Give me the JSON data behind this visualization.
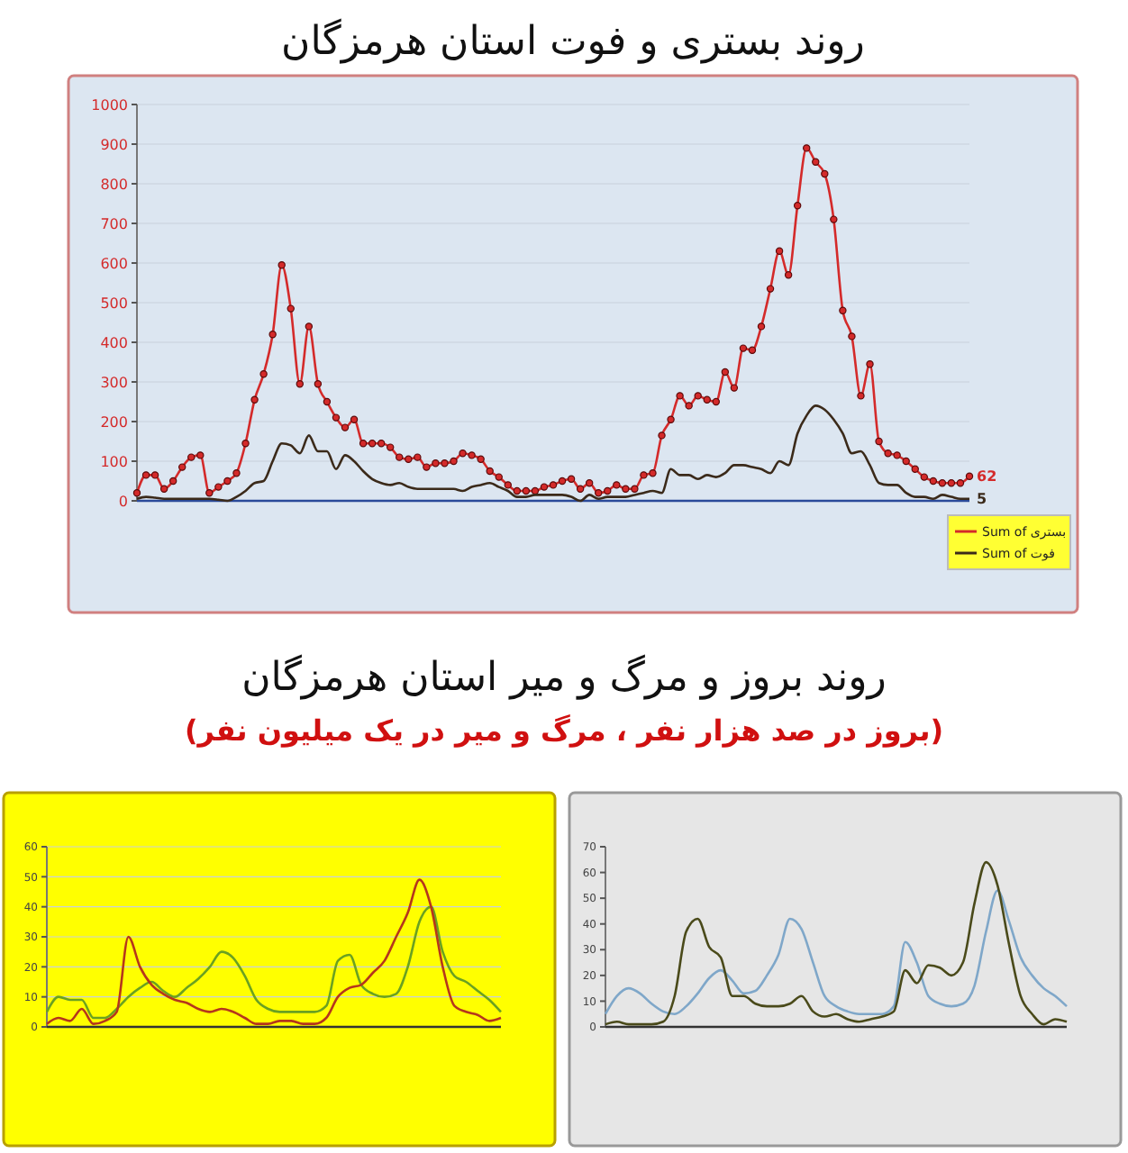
{
  "chart_data": [
    {
      "type": "line",
      "title": "روند بستری و فوت استان هرمزگان",
      "categories": [
        null,
        null,
        null,
        null,
        null,
        null,
        null,
        null,
        null,
        null,
        null,
        null,
        null,
        null,
        null,
        null,
        null,
        null,
        null,
        null,
        null,
        null,
        null,
        null,
        null,
        null,
        null,
        null,
        null,
        null,
        null,
        null,
        null,
        null,
        null,
        null,
        null,
        null,
        null,
        null,
        null,
        null,
        null,
        null,
        null,
        null,
        null,
        null,
        null,
        null,
        null,
        null,
        null,
        null,
        null,
        null,
        null,
        null,
        null,
        null,
        null,
        null,
        null,
        null,
        null,
        null,
        null,
        null,
        null,
        null,
        null,
        null,
        null,
        null,
        null,
        null,
        null,
        null,
        null,
        null,
        null,
        null,
        null,
        null,
        null,
        null,
        null,
        null,
        null,
        null,
        null,
        null,
        null
      ],
      "series": [
        {
          "name": "Sum of بستری",
          "color": "#d42a2a",
          "marker": "circle",
          "values": [
            20,
            65,
            65,
            30,
            50,
            85,
            110,
            115,
            20,
            35,
            50,
            70,
            145,
            255,
            320,
            420,
            595,
            485,
            295,
            440,
            295,
            250,
            210,
            185,
            205,
            145,
            145,
            145,
            135,
            110,
            105,
            110,
            85,
            95,
            95,
            100,
            120,
            115,
            105,
            75,
            60,
            40,
            25,
            25,
            25,
            35,
            40,
            50,
            55,
            30,
            45,
            20,
            25,
            40,
            30,
            30,
            65,
            70,
            165,
            205,
            265,
            240,
            265,
            255,
            250,
            325,
            285,
            385,
            380,
            440,
            535,
            630,
            570,
            745,
            890,
            855,
            825,
            710,
            480,
            415,
            265,
            345,
            150,
            120,
            115,
            100,
            80,
            60,
            50,
            45,
            45,
            45,
            62
          ],
          "value_labels": [
            null,
            null,
            null,
            null,
            null,
            null,
            null,
            null,
            null,
            null,
            null,
            null,
            null,
            null,
            null,
            null,
            null,
            null,
            null,
            null,
            null,
            null,
            null,
            null,
            null,
            null,
            null,
            null,
            null,
            null,
            null,
            null,
            null,
            null,
            null,
            null,
            null,
            null,
            null,
            null,
            null,
            null,
            null,
            null,
            null,
            null,
            null,
            null,
            null,
            null,
            null,
            null,
            null,
            null,
            null,
            null,
            null,
            null,
            null,
            null,
            null,
            null,
            null,
            null,
            null,
            null,
            null,
            null,
            null,
            null,
            null,
            null,
            null,
            null,
            null,
            null,
            null,
            null,
            null,
            null,
            null,
            null,
            null,
            null,
            null,
            null,
            null,
            null,
            null,
            null,
            null,
            null,
            "62"
          ]
        },
        {
          "name": "Sum of فوت",
          "color": "#3b2a1a",
          "marker": "none",
          "values": [
            5,
            10,
            8,
            5,
            5,
            5,
            5,
            5,
            5,
            3,
            0,
            10,
            25,
            45,
            50,
            100,
            145,
            140,
            120,
            165,
            125,
            125,
            80,
            115,
            100,
            75,
            55,
            45,
            40,
            45,
            35,
            30,
            30,
            30,
            30,
            30,
            25,
            35,
            40,
            45,
            35,
            25,
            10,
            10,
            15,
            15,
            15,
            15,
            10,
            0,
            15,
            5,
            10,
            10,
            10,
            15,
            20,
            25,
            20,
            80,
            65,
            65,
            55,
            65,
            60,
            70,
            90,
            90,
            85,
            80,
            70,
            100,
            90,
            170,
            215,
            240,
            230,
            205,
            170,
            120,
            125,
            90,
            45,
            40,
            40,
            20,
            10,
            10,
            5,
            15,
            10,
            5,
            5
          ],
          "value_labels": [
            null,
            null,
            null,
            null,
            null,
            null,
            null,
            null,
            null,
            null,
            null,
            null,
            null,
            null,
            null,
            null,
            null,
            null,
            null,
            null,
            null,
            null,
            null,
            null,
            null,
            null,
            null,
            null,
            null,
            null,
            null,
            null,
            null,
            null,
            null,
            null,
            null,
            null,
            null,
            null,
            null,
            null,
            null,
            null,
            null,
            null,
            null,
            null,
            null,
            null,
            null,
            null,
            null,
            null,
            null,
            null,
            null,
            null,
            null,
            null,
            null,
            null,
            null,
            null,
            null,
            null,
            null,
            null,
            null,
            null,
            null,
            null,
            null,
            null,
            null,
            null,
            null,
            null,
            null,
            null,
            null,
            null,
            null,
            null,
            null,
            null,
            null,
            null,
            null,
            null,
            null,
            null,
            "5"
          ]
        }
      ],
      "ylim": [
        0,
        1000
      ],
      "yticks": [
        0,
        100,
        200,
        300,
        400,
        500,
        600,
        700,
        800,
        900,
        1000
      ],
      "grid": "y",
      "legend": "bottom right"
    },
    {
      "type": "other",
      "title": "روند بروز و مرگ و میر استان هرمزگان",
      "subtitle": "(بروز در صد هزار نفر ، مرگ و میر در یک میلیون نفر)"
    },
    {
      "type": "line",
      "categories": [
        null,
        null,
        null,
        null,
        null,
        null,
        null,
        null,
        null,
        null,
        null,
        null,
        null,
        null,
        null,
        null,
        null,
        null,
        null,
        null,
        null,
        null,
        null,
        null,
        null,
        null,
        null,
        null,
        null,
        null,
        null,
        null,
        null,
        null,
        null,
        null,
        null,
        null,
        null,
        null
      ],
      "series": [
        {
          "color": "#6aa121",
          "values": [
            5,
            10,
            9,
            9,
            3,
            3,
            6,
            10,
            13,
            15,
            12,
            10,
            13,
            16,
            20,
            25,
            23,
            17,
            9,
            6,
            5,
            5,
            5,
            5,
            7,
            22,
            24,
            14,
            11,
            10,
            11,
            20,
            35,
            40,
            25,
            17,
            15,
            12,
            9,
            5
          ]
        },
        {
          "color": "#b5361c",
          "values": [
            1,
            3,
            2,
            6,
            1,
            2,
            5,
            30,
            20,
            14,
            11,
            9,
            8,
            6,
            5,
            6,
            5,
            3,
            1,
            1,
            2,
            2,
            1,
            1,
            3,
            10,
            13,
            14,
            18,
            22,
            30,
            38,
            49,
            40,
            20,
            7,
            5,
            4,
            2,
            3
          ]
        }
      ],
      "ylim": [
        0,
        60
      ],
      "yticks": [
        0,
        10,
        20,
        30,
        40,
        50,
        60
      ],
      "grid": "y",
      "tick_labels": "y"
    },
    {
      "type": "line",
      "categories": [
        null,
        null,
        null,
        null,
        null,
        null,
        null,
        null,
        null,
        null,
        null,
        null,
        null,
        null,
        null,
        null,
        null,
        null,
        null,
        null,
        null,
        null,
        null,
        null,
        null,
        null,
        null,
        null,
        null,
        null,
        null,
        null,
        null,
        null,
        null,
        null,
        null,
        null,
        null,
        null,
        null
      ],
      "series": [
        {
          "color": "#7fa7c9",
          "values": [
            5,
            12,
            15,
            13,
            9,
            6,
            5,
            8,
            13,
            19,
            22,
            18,
            13,
            14,
            20,
            28,
            42,
            38,
            25,
            12,
            8,
            6,
            5,
            5,
            5,
            8,
            33,
            25,
            12,
            9,
            8,
            9,
            16,
            37,
            53,
            41,
            27,
            20,
            15,
            12,
            8
          ]
        },
        {
          "color": "#4a4a1a",
          "values": [
            1,
            2,
            1,
            1,
            1,
            2,
            12,
            37,
            42,
            31,
            27,
            12,
            12,
            9,
            8,
            8,
            9,
            12,
            6,
            4,
            5,
            3,
            2,
            3,
            4,
            6,
            22,
            17,
            24,
            23,
            20,
            25,
            48,
            64,
            55,
            32,
            12,
            5,
            1,
            3,
            2
          ]
        }
      ],
      "ylim": [
        0,
        70
      ],
      "yticks": [
        0,
        10,
        20,
        30,
        40,
        50,
        60,
        70
      ],
      "grid": false,
      "tick_labels": "y"
    }
  ]
}
